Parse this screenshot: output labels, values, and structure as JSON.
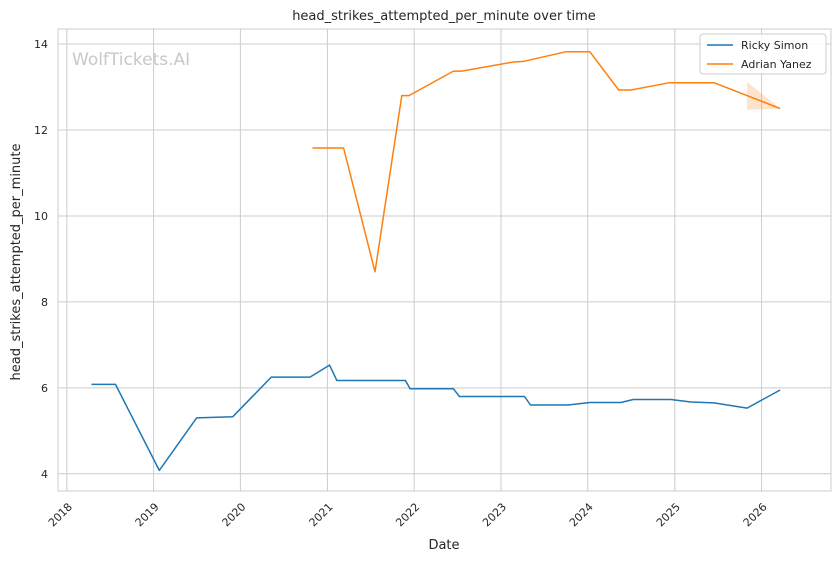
{
  "watermark": "WolfTickets.AI",
  "chart_data": {
    "type": "line",
    "title": "head_strikes_attempted_per_minute over time",
    "xlabel": "Date",
    "ylabel": "head_strikes_attempted_per_minute",
    "xlim": [
      "2017-11-25",
      "2026-10-20"
    ],
    "ylim": [
      3.6,
      14.35
    ],
    "x_ticks": [
      "2018",
      "2019",
      "2020",
      "2021",
      "2022",
      "2023",
      "2024",
      "2025",
      "2026"
    ],
    "y_ticks": [
      4,
      6,
      8,
      10,
      12,
      14
    ],
    "grid": true,
    "legend_position": "top-right",
    "series": [
      {
        "name": "Ricky Simon",
        "color": "#1f77b4",
        "points": [
          [
            "2018-04-15",
            6.08
          ],
          [
            "2018-07-25",
            6.08
          ],
          [
            "2019-01-25",
            4.08
          ],
          [
            "2019-07-01",
            5.3
          ],
          [
            "2019-11-30",
            5.33
          ],
          [
            "2020-05-10",
            6.25
          ],
          [
            "2020-10-20",
            6.25
          ],
          [
            "2021-01-10",
            6.53
          ],
          [
            "2021-02-10",
            6.17
          ],
          [
            "2021-11-25",
            6.17
          ],
          [
            "2021-12-15",
            5.98
          ],
          [
            "2022-06-15",
            5.98
          ],
          [
            "2022-07-10",
            5.8
          ],
          [
            "2023-04-10",
            5.8
          ],
          [
            "2023-05-05",
            5.6
          ],
          [
            "2023-10-10",
            5.6
          ],
          [
            "2024-01-10",
            5.66
          ],
          [
            "2024-05-20",
            5.66
          ],
          [
            "2024-07-10",
            5.73
          ],
          [
            "2024-12-15",
            5.73
          ],
          [
            "2025-03-10",
            5.67
          ],
          [
            "2025-06-15",
            5.65
          ],
          [
            "2025-11-01",
            5.53
          ],
          [
            "2026-03-20",
            5.95
          ]
        ]
      },
      {
        "name": "Adrian Yanez",
        "color": "#ff7f0e",
        "points": [
          [
            "2020-10-30",
            11.58
          ],
          [
            "2021-03-10",
            11.58
          ],
          [
            "2021-07-20",
            8.7
          ],
          [
            "2021-11-10",
            12.8
          ],
          [
            "2021-12-10",
            12.8
          ],
          [
            "2022-06-15",
            13.37
          ],
          [
            "2022-07-20",
            13.37
          ],
          [
            "2023-02-20",
            13.58
          ],
          [
            "2023-04-10",
            13.6
          ],
          [
            "2023-09-30",
            13.82
          ],
          [
            "2024-01-10",
            13.82
          ],
          [
            "2024-05-10",
            12.93
          ],
          [
            "2024-07-01",
            12.93
          ],
          [
            "2024-12-10",
            13.1
          ],
          [
            "2025-06-15",
            13.1
          ],
          [
            "2026-03-20",
            12.5
          ]
        ],
        "band": {
          "x": [
            "2025-11-01",
            "2026-03-20"
          ],
          "upper": [
            13.12,
            12.5
          ],
          "lower": [
            12.47,
            12.5
          ]
        }
      }
    ]
  }
}
